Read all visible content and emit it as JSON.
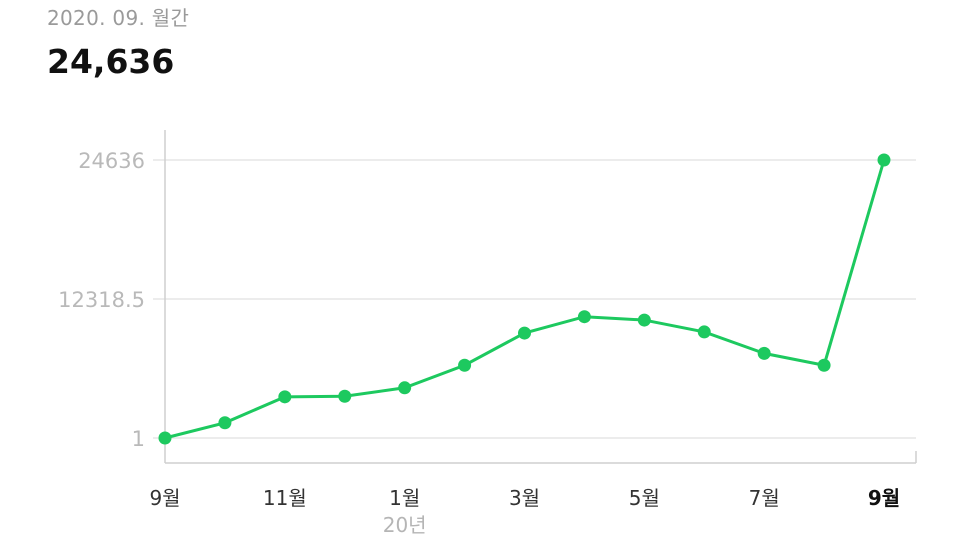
{
  "header": {
    "period": "2020. 09. 월간",
    "total": "24,636"
  },
  "colors": {
    "line": "#1dc95f",
    "grid": "#e6e6e6",
    "axis": "#cfcfcf"
  },
  "chart_data": {
    "type": "line",
    "x": [
      "19-09",
      "19-10",
      "19-11",
      "19-12",
      "20-01",
      "20-02",
      "20-03",
      "20-04",
      "20-05",
      "20-06",
      "20-07",
      "20-08",
      "20-09"
    ],
    "values": [
      1,
      1350,
      3650,
      3700,
      4450,
      6450,
      9300,
      10750,
      10450,
      9400,
      7500,
      6450,
      24636
    ],
    "y_ticks": [
      "1",
      "12318.5",
      "24636"
    ],
    "ylim": [
      1,
      24636
    ],
    "x_tick_labels": [
      {
        "index": 0,
        "label": "9월"
      },
      {
        "index": 2,
        "label": "11월"
      },
      {
        "index": 4,
        "label": "1월"
      },
      {
        "index": 6,
        "label": "3월"
      },
      {
        "index": 8,
        "label": "5월"
      },
      {
        "index": 10,
        "label": "7월"
      },
      {
        "index": 12,
        "label": "9월",
        "active": true
      }
    ],
    "year_marker": {
      "index": 4,
      "label": "20년"
    },
    "grid": true
  }
}
